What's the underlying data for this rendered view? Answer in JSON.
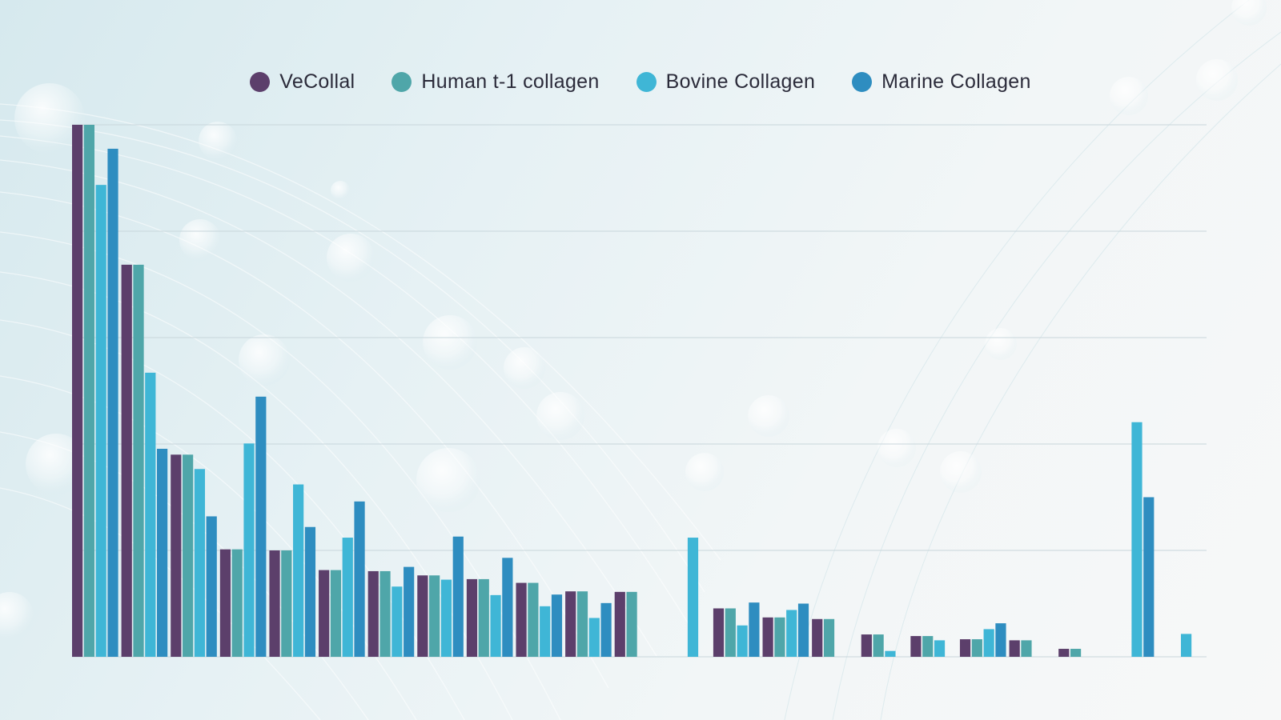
{
  "chart_data": {
    "type": "bar",
    "title": "",
    "xlabel": "",
    "ylabel": "",
    "ylim": [
      0,
      100
    ],
    "grid": true,
    "legend_position": "top-center",
    "categories": [
      "",
      "",
      "",
      "",
      "",
      "",
      "",
      "",
      "",
      "",
      "",
      "",
      "",
      "",
      "",
      "",
      "",
      "",
      "",
      "",
      "",
      "",
      ""
    ],
    "series": [
      {
        "name": "VeCollal",
        "color": "#5c3f6b",
        "values": [
          100,
          73.7,
          38.0,
          20.2,
          20.0,
          16.3,
          16.1,
          15.3,
          14.6,
          13.9,
          12.3,
          12.2,
          0,
          9.1,
          7.4,
          7.1,
          4.2,
          3.9,
          3.3,
          3.1,
          1.5,
          0,
          0
        ]
      },
      {
        "name": "Human t-1 collagen",
        "color": "#4fa6a9",
        "values": [
          100,
          73.7,
          38.0,
          20.2,
          20.0,
          16.3,
          16.1,
          15.3,
          14.6,
          13.9,
          12.3,
          12.2,
          0,
          9.1,
          7.4,
          7.1,
          4.2,
          3.9,
          3.3,
          3.1,
          1.5,
          0,
          0
        ]
      },
      {
        "name": "Bovine Collagen",
        "color": "#3fb6d6",
        "values": [
          88.7,
          53.4,
          35.3,
          40.1,
          32.4,
          22.4,
          13.2,
          14.5,
          11.6,
          9.5,
          7.3,
          0,
          22.4,
          5.9,
          8.8,
          0,
          1.1,
          3.1,
          5.2,
          0,
          0,
          44.1,
          4.3
        ]
      },
      {
        "name": "Marine Collagen",
        "color": "#2e8dc0",
        "values": [
          95.5,
          39.1,
          26.4,
          48.9,
          24.4,
          29.2,
          16.9,
          22.6,
          18.6,
          11.7,
          10.1,
          0,
          0,
          10.2,
          10.0,
          0,
          0,
          0,
          6.3,
          0,
          0,
          30.0,
          0
        ]
      }
    ]
  }
}
